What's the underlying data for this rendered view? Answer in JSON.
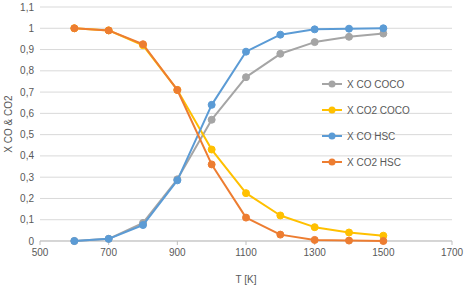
{
  "chart_data": {
    "type": "line",
    "x_label": "T [K]",
    "y_label": "X CO & CO2",
    "x": [
      600,
      700,
      800,
      900,
      1000,
      1100,
      1200,
      1300,
      1400,
      1500
    ],
    "series": [
      {
        "name": "X CO COCO",
        "color": "#a5a5a5",
        "values": [
          0,
          0.01,
          0.085,
          0.29,
          0.57,
          0.77,
          0.88,
          0.935,
          0.96,
          0.975
        ]
      },
      {
        "name": "X CO2 COCO",
        "color": "#ffc000",
        "values": [
          1,
          0.99,
          0.92,
          0.71,
          0.43,
          0.225,
          0.12,
          0.065,
          0.04,
          0.025
        ]
      },
      {
        "name": "X CO HSC",
        "color": "#5b9bd5",
        "values": [
          0,
          0.01,
          0.075,
          0.285,
          0.64,
          0.89,
          0.97,
          0.995,
          0.998,
          1
        ]
      },
      {
        "name": "X CO2 HSC",
        "color": "#ed7d31",
        "values": [
          1,
          0.99,
          0.925,
          0.71,
          0.36,
          0.11,
          0.03,
          0.005,
          0.002,
          0
        ]
      }
    ],
    "xlim": [
      500,
      1700
    ],
    "xticks": [
      500,
      700,
      900,
      1100,
      1300,
      1500,
      1700
    ],
    "ylim": [
      0,
      1.1
    ],
    "yticks": [
      0,
      {
        "value": 0.1,
        "label": "0,1"
      },
      {
        "value": 0.2,
        "label": "0,2"
      },
      {
        "value": 0.3,
        "label": "0,3"
      },
      {
        "value": 0.4,
        "label": "0,4"
      },
      {
        "value": 0.5,
        "label": "0,5"
      },
      {
        "value": 0.6,
        "label": "0,6"
      },
      {
        "value": 0.7,
        "label": "0,7"
      },
      {
        "value": 0.8,
        "label": "0,8"
      },
      {
        "value": 0.9,
        "label": "0,9"
      },
      1,
      {
        "value": 1.1,
        "label": "1,1"
      }
    ],
    "grid": true,
    "legend": "right",
    "marker": "circle",
    "line_style": "solid"
  }
}
